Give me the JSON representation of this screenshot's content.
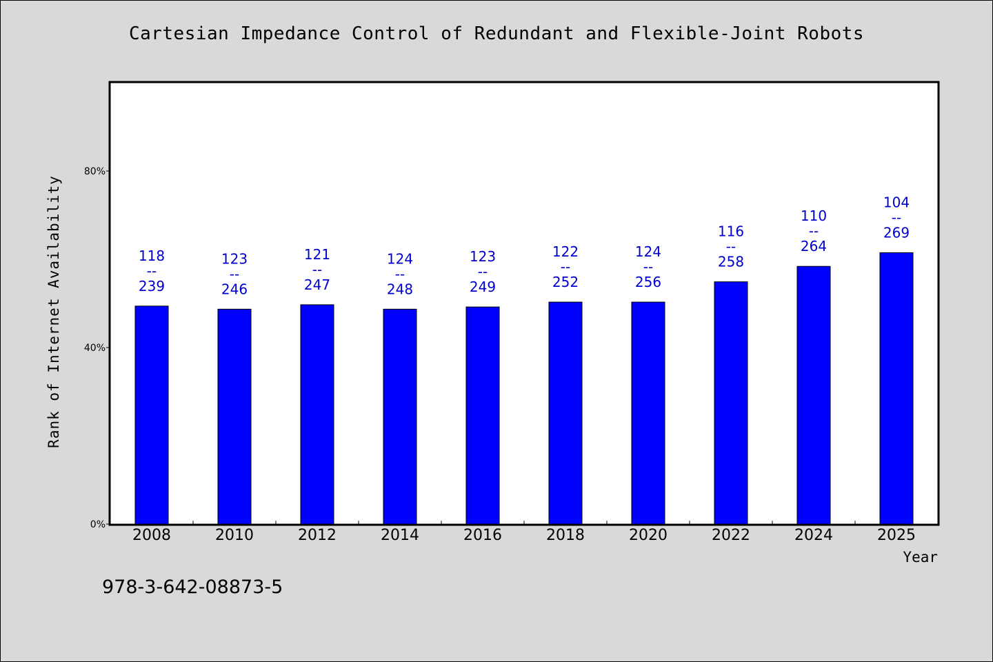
{
  "chart_data": {
    "type": "bar",
    "title": "Cartesian Impedance Control of Redundant and Flexible-Joint Robots",
    "xlabel": "Year",
    "ylabel": "Rank of Internet Availability",
    "categories": [
      "2008",
      "2010",
      "2012",
      "2014",
      "2016",
      "2018",
      "2020",
      "2022",
      "2024",
      "2025"
    ],
    "values": [
      49.4,
      48.7,
      49.7,
      48.7,
      49.2,
      50.3,
      50.3,
      54.9,
      58.4,
      61.5
    ],
    "value_format": "percent",
    "data_labels": [
      [
        "118",
        "--",
        "239"
      ],
      [
        "123",
        "--",
        "246"
      ],
      [
        "121",
        "--",
        "247"
      ],
      [
        "124",
        "--",
        "248"
      ],
      [
        "123",
        "--",
        "249"
      ],
      [
        "122",
        "--",
        "252"
      ],
      [
        "124",
        "--",
        "256"
      ],
      [
        "116",
        "--",
        "258"
      ],
      [
        "110",
        "--",
        "264"
      ],
      [
        "104",
        "--",
        "269"
      ]
    ],
    "yticks": [
      "0%",
      "40%",
      "80%"
    ],
    "ytick_values": [
      0,
      40,
      80
    ],
    "ylim": [
      0,
      100
    ],
    "grid": false,
    "bar_color": "#0000ff",
    "label_color": "#0000cc",
    "plot_background": "#ffffff",
    "page_background": "#d9d9d9"
  },
  "footer": {
    "isbn": "978-3-642-08873-5"
  }
}
